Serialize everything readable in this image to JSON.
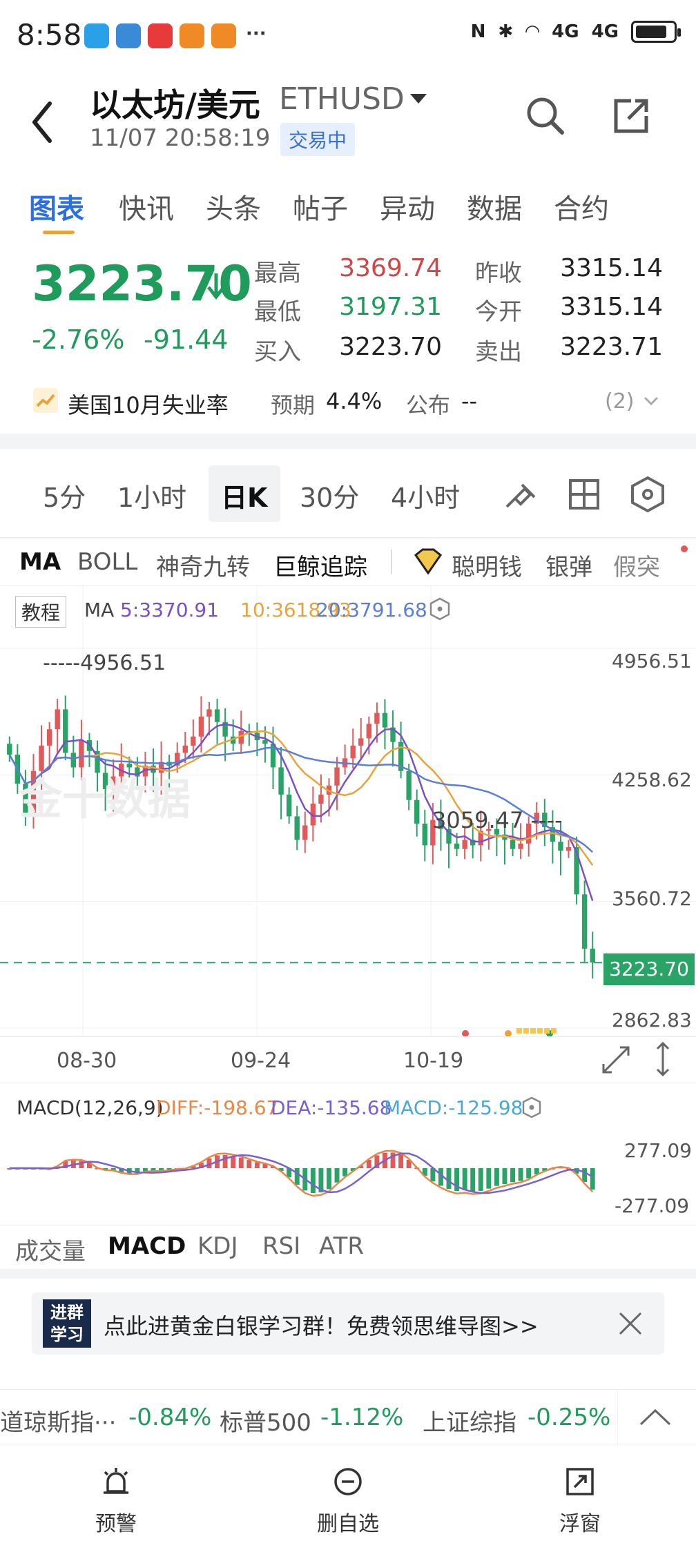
{
  "status": {
    "time": "8:58",
    "network": "4G",
    "network2": "4G"
  },
  "header": {
    "title": "以太坊/美元",
    "symbol": "ETHUSD",
    "datetime": "11/07 20:58:19",
    "trade_status": "交易中"
  },
  "tabs": [
    "图表",
    "快讯",
    "头条",
    "帖子",
    "异动",
    "数据",
    "合约"
  ],
  "quote": {
    "price": "3223.70",
    "change_pct": "-2.76%",
    "change": "-91.44",
    "high_label": "最高",
    "high": "3369.74",
    "low_label": "最低",
    "low": "3197.31",
    "bid_label": "买入",
    "bid": "3223.70",
    "prev_close_label": "昨收",
    "prev_close": "3315.14",
    "open_label": "今开",
    "open": "3315.14",
    "ask_label": "卖出",
    "ask": "3223.71"
  },
  "news": {
    "title": "美国10月失业率",
    "expect_label": "预期",
    "expect": "4.4%",
    "publish_label": "公布",
    "publish": "--",
    "count": "(2)"
  },
  "period_tabs": [
    "5分",
    "1小时",
    "日K",
    "30分",
    "4小时"
  ],
  "indicators": [
    "MA",
    "BOLL",
    "神奇九转",
    "巨鲸追踪",
    "聪明钱",
    "银弹",
    "假突"
  ],
  "ma_legend": {
    "tutorial": "教程",
    "ma": "MA",
    "ma5": "5:3370.91",
    "ma10": "10:3618.93",
    "ma20": "20:3791.68"
  },
  "price_axis": [
    "4956.51",
    "4258.62",
    "3560.72",
    "3223.70",
    "2862.83"
  ],
  "chart_labels": {
    "high_marker": "4956.51",
    "low_marker": "3059.47",
    "watermark": "金十数据"
  },
  "date_axis": [
    "08-30",
    "09-24",
    "10-19"
  ],
  "macd": {
    "title": "MACD(12,26,9)",
    "diff": "DIFF:-198.67",
    "dea": "DEA:-135.68",
    "macd": "MACD:-125.98",
    "top": "277.09",
    "bottom": "-277.09"
  },
  "bottom_tabs": [
    "成交量",
    "MACD",
    "KDJ",
    "RSI",
    "ATR"
  ],
  "banner": {
    "logo1": "进群",
    "logo2": "学习",
    "text": "点此进黄金白银学习群！免费领思维导图>>"
  },
  "ticker": [
    {
      "name": "道琼斯指···",
      "value": "-0.84%"
    },
    {
      "name": "标普500",
      "value": "-1.12%"
    },
    {
      "name": "上证综指",
      "value": "-0.25%"
    }
  ],
  "bottom_nav": [
    "预警",
    "删自选",
    "浮窗"
  ],
  "colors": {
    "up": "#e05a5a",
    "down": "#2aa466",
    "accent": "#2b6fe0",
    "ma5": "#7a4fc9",
    "ma10": "#e8a33a",
    "ma20": "#5b7fd8"
  },
  "chart_data": {
    "type": "candlestick",
    "x_ticks": [
      "08-30",
      "09-24",
      "10-19"
    ],
    "y_ticks": [
      4956.51,
      4258.62,
      3560.72,
      2862.83
    ],
    "last": 3223.7,
    "marked_high": 4956.51,
    "marked_low": 3059.47,
    "ylim": [
      2862.83,
      4956.51
    ],
    "closes": [
      4370,
      4210,
      4050,
      4280,
      4420,
      4510,
      4620,
      4380,
      4300,
      4450,
      4390,
      4270,
      4180,
      4250,
      4320,
      4300,
      4250,
      4310,
      4270,
      4330,
      4310,
      4380,
      4420,
      4470,
      4580,
      4620,
      4550,
      4470,
      4430,
      4500,
      4490,
      4450,
      4430,
      4300,
      4150,
      4030,
      3900,
      3980,
      4100,
      4150,
      4200,
      4300,
      4350,
      4420,
      4460,
      4540,
      4600,
      4520,
      4440,
      4280,
      4120,
      3990,
      3870,
      4010,
      3960,
      3880,
      3850,
      3900,
      3870,
      3950,
      3960,
      3930,
      3900,
      3850,
      3880,
      3990,
      4050,
      3970,
      3890,
      3840,
      3860,
      3600,
      3300,
      3223.7
    ]
  }
}
